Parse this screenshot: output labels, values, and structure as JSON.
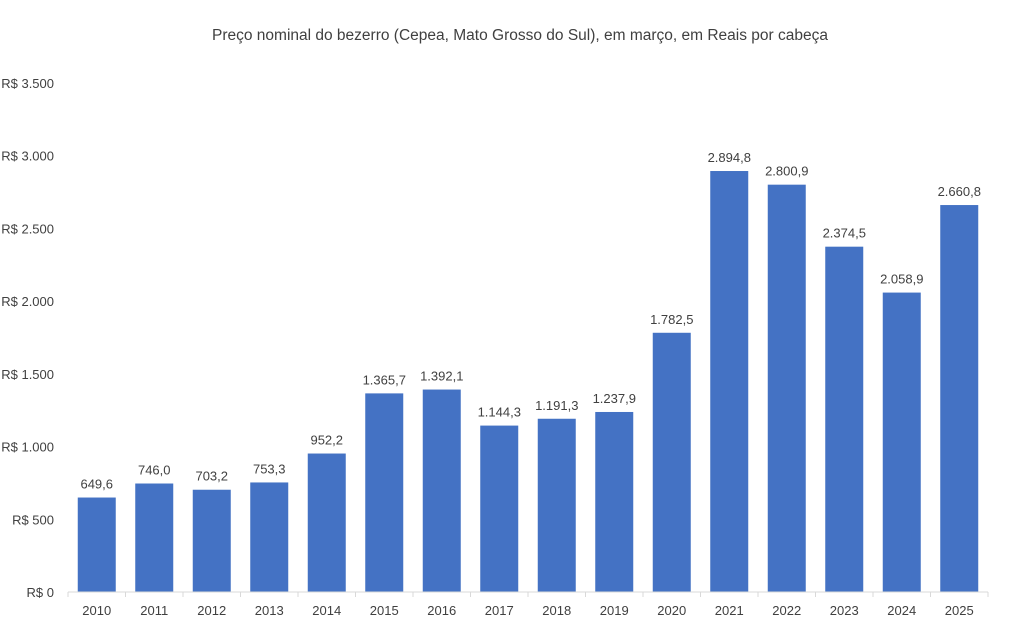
{
  "chart_data": {
    "type": "bar",
    "title": "Preço nominal do bezerro (Cepea, Mato Grosso do Sul), em março, em Reais por cabeça",
    "xlabel": "",
    "ylabel": "",
    "categories": [
      "2010",
      "2011",
      "2012",
      "2013",
      "2014",
      "2015",
      "2016",
      "2017",
      "2018",
      "2019",
      "2020",
      "2021",
      "2022",
      "2023",
      "2024",
      "2025"
    ],
    "values": [
      649.6,
      746.0,
      703.2,
      753.3,
      952.2,
      1365.7,
      1392.1,
      1144.3,
      1191.3,
      1237.9,
      1782.5,
      2894.8,
      2800.9,
      2374.5,
      2058.9,
      2660.8
    ],
    "data_labels": [
      "649,6",
      "746,0",
      "703,2",
      "753,3",
      "952,2",
      "1.365,7",
      "1.392,1",
      "1.144,3",
      "1.191,3",
      "1.237,9",
      "1.782,5",
      "2.894,8",
      "2.800,9",
      "2.374,5",
      "2.058,9",
      "2.660,8"
    ],
    "ylim": [
      0,
      3500
    ],
    "yticks": [
      0,
      500,
      1000,
      1500,
      2000,
      2500,
      3000,
      3500
    ],
    "ytick_labels": [
      "R$ 0",
      "R$ 500",
      "R$ 1.000",
      "R$ 1.500",
      "R$ 2.000",
      "R$ 2.500",
      "R$ 3.000",
      "R$ 3.500"
    ],
    "grid": false,
    "bar_color": "#4472C4"
  }
}
